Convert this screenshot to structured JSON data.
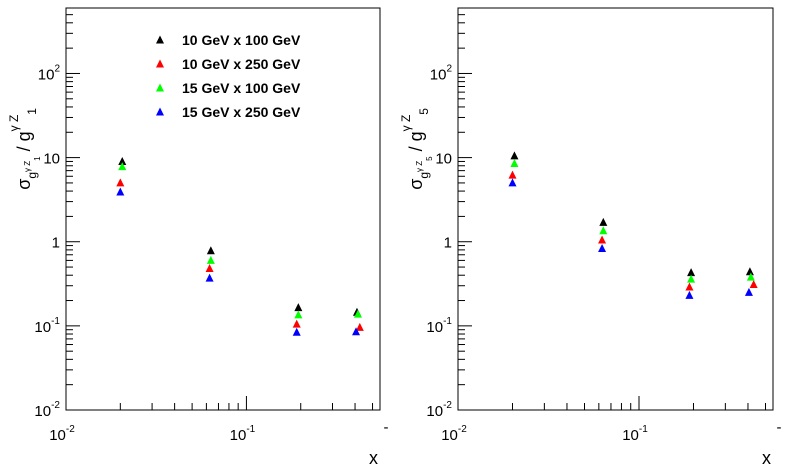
{
  "chart_data": [
    {
      "type": "scatter",
      "name": "left-panel",
      "xlabel": "x",
      "ylabel": {
        "base": "σ",
        "sub": "g",
        "subsup": "γ Z",
        "subsub": "1",
        "slash": " / ",
        "den": "g",
        "densup": "γ Z",
        "densub": "1"
      },
      "xscale": "log",
      "yscale": "log",
      "xlim": [
        0.01,
        0.55
      ],
      "ylim": [
        0.01,
        600
      ],
      "x_ticks": [
        {
          "mant": "10",
          "exp": "-2",
          "value": 0.01
        },
        {
          "mant": "10",
          "exp": "-1",
          "value": 0.1
        }
      ],
      "x_edge_label": "-",
      "y_ticks": [
        {
          "mant": "10",
          "exp": "-2",
          "value": 0.01
        },
        {
          "mant": "10",
          "exp": "-1",
          "value": 0.1
        },
        {
          "mant": "1",
          "exp": "",
          "value": 1
        },
        {
          "mant": "10",
          "exp": "",
          "value": 10
        },
        {
          "mant": "10",
          "exp": "2",
          "value": 100
        }
      ],
      "legend": {
        "position": "top-left"
      },
      "series": [
        {
          "name": "10 GeV x 100 GeV",
          "color": "#000000",
          "x": [
            0.0205,
            0.0635,
            0.194,
            0.41
          ],
          "y": [
            9.0,
            0.78,
            0.165,
            0.145
          ]
        },
        {
          "name": "10 GeV x 250 GeV",
          "color": "#ff0000",
          "x": [
            0.02,
            0.0625,
            0.19,
            0.425
          ],
          "y": [
            5.0,
            0.48,
            0.105,
            0.096
          ]
        },
        {
          "name": "15 GeV x 100 GeV",
          "color": "#00ff00",
          "x": [
            0.0205,
            0.0635,
            0.194,
            0.415
          ],
          "y": [
            7.8,
            0.6,
            0.135,
            0.138
          ]
        },
        {
          "name": "15 GeV x 250 GeV",
          "color": "#0000ff",
          "x": [
            0.02,
            0.0625,
            0.19,
            0.405
          ],
          "y": [
            3.9,
            0.37,
            0.084,
            0.085
          ]
        }
      ]
    },
    {
      "type": "scatter",
      "name": "right-panel",
      "xlabel": "x",
      "ylabel": {
        "base": "σ",
        "sub": "g",
        "subsup": "γ Z",
        "subsub": "5",
        "slash": " / ",
        "den": "g",
        "densup": "γ Z",
        "densub": "5"
      },
      "xscale": "log",
      "yscale": "log",
      "xlim": [
        0.01,
        0.55
      ],
      "ylim": [
        0.01,
        600
      ],
      "x_ticks": [
        {
          "mant": "10",
          "exp": "-2",
          "value": 0.01
        },
        {
          "mant": "10",
          "exp": "-1",
          "value": 0.1
        }
      ],
      "x_edge_label": "-",
      "y_ticks": [
        {
          "mant": "10",
          "exp": "-2",
          "value": 0.01
        },
        {
          "mant": "10",
          "exp": "-1",
          "value": 0.1
        },
        {
          "mant": "1",
          "exp": "",
          "value": 1
        },
        {
          "mant": "10",
          "exp": "",
          "value": 10
        },
        {
          "mant": "10",
          "exp": "2",
          "value": 100
        }
      ],
      "series": [
        {
          "name": "10 GeV x 100 GeV",
          "color": "#000000",
          "x": [
            0.0205,
            0.0635,
            0.194,
            0.41
          ],
          "y": [
            10.5,
            1.7,
            0.43,
            0.44
          ]
        },
        {
          "name": "10 GeV x 250 GeV",
          "color": "#ff0000",
          "x": [
            0.02,
            0.0625,
            0.19,
            0.43
          ],
          "y": [
            6.2,
            1.05,
            0.29,
            0.31
          ]
        },
        {
          "name": "15 GeV x 100 GeV",
          "color": "#00ff00",
          "x": [
            0.0205,
            0.0635,
            0.194,
            0.415
          ],
          "y": [
            8.5,
            1.35,
            0.36,
            0.38
          ]
        },
        {
          "name": "15 GeV x 250 GeV",
          "color": "#0000ff",
          "x": [
            0.02,
            0.0625,
            0.19,
            0.405
          ],
          "y": [
            5.0,
            0.83,
            0.23,
            0.25
          ]
        }
      ]
    }
  ]
}
